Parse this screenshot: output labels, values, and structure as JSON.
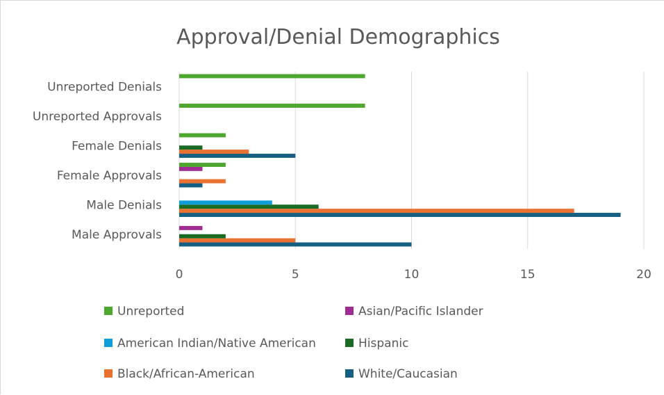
{
  "chart_data": {
    "type": "bar",
    "orientation": "horizontal",
    "title": "Approval/Denial Demographics",
    "xlabel": "",
    "ylabel": "",
    "xlim": [
      0,
      20
    ],
    "x_ticks": [
      0,
      5,
      10,
      15,
      20
    ],
    "grid": true,
    "legend_position": "bottom",
    "categories": [
      "Male Approvals",
      "Male Denials",
      "Female Approvals",
      "Female Denials",
      "Unreported Approvals",
      "Unreported Denials"
    ],
    "series": [
      {
        "name": "White/Caucasian",
        "color": "#156082",
        "values": [
          10,
          19,
          1,
          5,
          0,
          0
        ]
      },
      {
        "name": "Black/African-American",
        "color": "#E97132",
        "values": [
          5,
          17,
          2,
          3,
          0,
          0
        ]
      },
      {
        "name": "Hispanic",
        "color": "#196B24",
        "values": [
          2,
          6,
          0,
          1,
          0,
          0
        ]
      },
      {
        "name": "American Indian/Native American",
        "color": "#0F9ED5",
        "values": [
          0,
          4,
          0,
          0,
          0,
          0
        ]
      },
      {
        "name": "Asian/Pacific Islander",
        "color": "#A02B93",
        "values": [
          1,
          0,
          1,
          0,
          0,
          0
        ]
      },
      {
        "name": "Unreported",
        "color": "#4EA72E",
        "values": [
          0,
          0,
          2,
          2,
          8,
          8
        ]
      }
    ],
    "legend_order": [
      "Unreported",
      "Asian/Pacific Islander",
      "American Indian/Native American",
      "Hispanic",
      "Black/African-American",
      "White/Caucasian"
    ]
  }
}
